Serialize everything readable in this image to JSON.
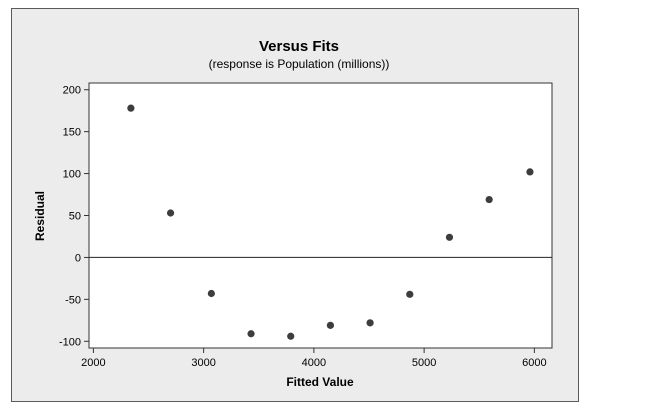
{
  "chart_data": {
    "type": "scatter",
    "title": "Versus Fits",
    "subtitle": "(response is Population (millions))",
    "xlabel": "Fitted Value",
    "ylabel": "Residual",
    "xlim": [
      1960,
      6160
    ],
    "ylim": [
      -108,
      208
    ],
    "xticks": [
      2000,
      3000,
      4000,
      5000,
      6000
    ],
    "yticks": [
      -100,
      -50,
      0,
      50,
      100,
      150,
      200
    ],
    "reference_line_y": 0,
    "point_color": "#3d3d3d",
    "x": [
      2340,
      2700,
      3070,
      3430,
      3790,
      4150,
      4510,
      4870,
      5230,
      5590,
      5960
    ],
    "y": [
      178,
      53,
      -43,
      -91,
      -94,
      -81,
      -78,
      -44,
      24,
      69,
      102
    ]
  }
}
